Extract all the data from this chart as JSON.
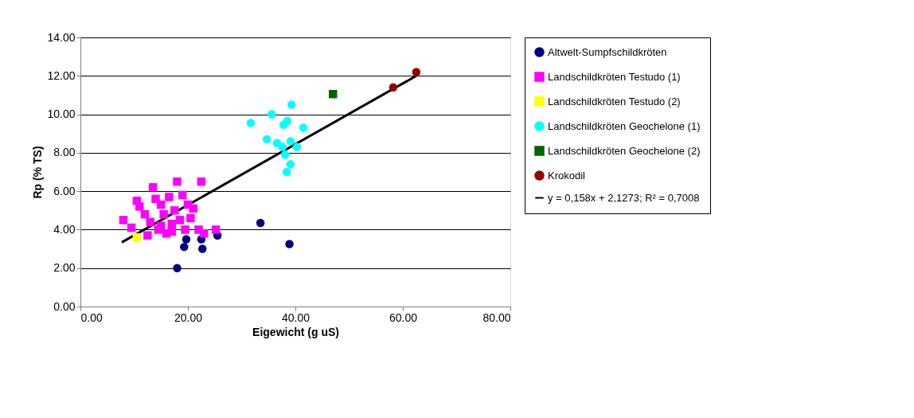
{
  "chart_data": {
    "type": "scatter",
    "xlabel": "Eigewicht (g uS)",
    "ylabel": "Rp (% TS)",
    "xlim": [
      0,
      80
    ],
    "ylim": [
      0,
      14
    ],
    "xticks": [
      {
        "value": 0,
        "label": "0.00"
      },
      {
        "value": 20,
        "label": "20.00"
      },
      {
        "value": 40,
        "label": "40.00"
      },
      {
        "value": 60,
        "label": "60.00"
      },
      {
        "value": 80,
        "label": "80.00"
      }
    ],
    "yticks": [
      {
        "value": 0,
        "label": "0.00"
      },
      {
        "value": 2,
        "label": "2.00"
      },
      {
        "value": 4,
        "label": "4.00"
      },
      {
        "value": 6,
        "label": "6.00"
      },
      {
        "value": 8,
        "label": "8.00"
      },
      {
        "value": 10,
        "label": "10.00"
      },
      {
        "value": 12,
        "label": "12.00"
      },
      {
        "value": 14,
        "label": "14.00"
      }
    ],
    "grid": "y",
    "legend": "right",
    "series": [
      {
        "name": "Altwelt-Sumpfschildkröten",
        "color": "#000080",
        "marker": "circle",
        "x": [
          18,
          19.3,
          19.7,
          22.5,
          22.7,
          25.5,
          33.5,
          38.9
        ],
        "values": [
          2.0,
          3.1,
          3.5,
          3.5,
          3.0,
          3.7,
          4.35,
          3.25
        ]
      },
      {
        "name": "Landschildkröten Testudo (1)",
        "color": "#ff00ff",
        "marker": "square",
        "x": [
          8,
          9.5,
          10.5,
          11,
          12,
          12.5,
          13,
          13.5,
          14,
          14.5,
          15,
          15.5,
          16,
          16.5,
          17,
          17.5,
          18,
          18.5,
          19,
          19.5,
          20,
          20.5,
          21,
          22,
          22.5,
          23,
          25.2,
          17,
          15
        ],
        "values": [
          4.5,
          4.1,
          5.5,
          5.2,
          4.8,
          3.7,
          4.4,
          6.2,
          5.6,
          4.0,
          5.3,
          4.8,
          3.8,
          5.7,
          4.3,
          5.0,
          6.5,
          4.5,
          5.8,
          4.0,
          5.3,
          4.6,
          5.1,
          4.0,
          6.5,
          3.8,
          4.0,
          3.9,
          4.2
        ]
      },
      {
        "name": "Landschildkröten Testudo (2)",
        "color": "#ffff00",
        "marker": "square",
        "x": [
          10.5
        ],
        "values": [
          3.6
        ]
      },
      {
        "name": "Landschildkröten Geochelone (1)",
        "color": "#00ffff",
        "marker": "circle",
        "x": [
          39.3,
          35.6,
          31.7,
          38.5,
          37.8,
          41.5,
          34.7,
          36.6,
          39.1,
          40.3,
          38.1,
          39.1,
          38.4,
          37.6
        ],
        "values": [
          10.5,
          10.0,
          9.55,
          9.65,
          9.45,
          9.3,
          8.7,
          8.5,
          8.6,
          8.3,
          7.9,
          7.4,
          7.0,
          8.3
        ]
      },
      {
        "name": "Landschildkröten Geochelone (2)",
        "color": "#006400",
        "marker": "square",
        "x": [
          47
        ],
        "values": [
          11.05
        ]
      },
      {
        "name": "Krokodil",
        "color": "#990000",
        "marker": "circle",
        "x": [
          58.2,
          62.5
        ],
        "values": [
          11.4,
          12.2
        ]
      },
      {
        "name": "y = 0,158x + 2,1273; R² = 0,7008",
        "color": "#000000",
        "type": "line",
        "marker": "none",
        "x": [
          7.7,
          62.5
        ],
        "values": [
          3.34,
          12.0
        ]
      }
    ]
  }
}
